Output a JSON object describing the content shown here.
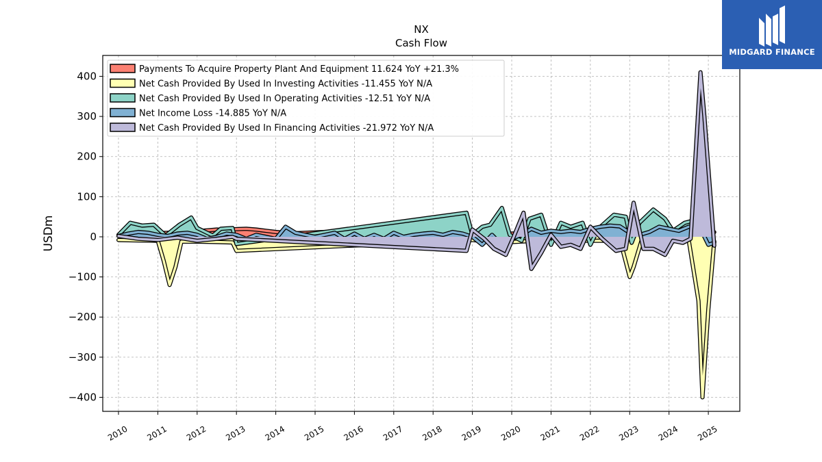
{
  "brand": {
    "name": "MIDGARD FINANCE",
    "logo_icon": "midgard-m-logo-icon",
    "color": "#2b5fb3"
  },
  "chart_data": {
    "type": "area",
    "title": "NX",
    "subtitle": "Cash Flow",
    "xlabel": "",
    "ylabel": "USDm",
    "xlim": [
      2009.6,
      2025.8
    ],
    "ylim": [
      -435,
      452
    ],
    "grid": true,
    "legend_position": "top-left",
    "x_ticks": [
      "2010",
      "2011",
      "2012",
      "2013",
      "2014",
      "2015",
      "2016",
      "2017",
      "2018",
      "2019",
      "2020",
      "2021",
      "2022",
      "2023",
      "2024",
      "2025"
    ],
    "y_ticks": [
      400,
      300,
      200,
      100,
      0,
      -100,
      -200,
      -300,
      -400
    ],
    "y_tick_labels": [
      "400",
      "300",
      "200",
      "100",
      "0",
      "−100",
      "−200",
      "−300",
      "−400"
    ],
    "series": [
      {
        "name": "Payments To Acquire Property Plant And Equipment",
        "legend": "Payments To Acquire Property Plant And Equipment  11.624 YoY +21.3%",
        "color": "#fb8072",
        "x": [
          2010.0,
          2010.25,
          2010.5,
          2010.75,
          2011.0,
          2011.25,
          2011.5,
          2011.75,
          2012.0,
          2012.25,
          2012.5,
          2012.75,
          2013.0,
          2013.25,
          2013.5,
          2013.75,
          2014.0,
          2014.25,
          2014.5,
          2014.75,
          2015.0,
          2015.25,
          2015.5,
          2015.75,
          2016.0,
          2016.25,
          2016.5,
          2016.75,
          2017.0,
          2017.25,
          2017.5,
          2017.75,
          2018.0,
          2018.25,
          2018.5,
          2018.75,
          2019.0,
          2019.25,
          2019.5,
          2019.75,
          2020.0,
          2020.25,
          2020.5,
          2020.75,
          2021.0,
          2021.25,
          2021.5,
          2021.75,
          2022.0,
          2022.25,
          2022.5,
          2022.75,
          2023.0,
          2023.25,
          2023.5,
          2023.75,
          2024.0,
          2024.25,
          2024.5,
          2024.75,
          2025.0,
          2025.15
        ],
        "values": [
          5,
          6,
          7,
          8,
          9,
          10,
          12,
          13,
          14,
          16,
          18,
          17,
          19,
          20,
          18,
          15,
          12,
          10,
          9,
          10,
          11,
          12,
          11,
          10,
          9,
          8,
          9,
          10,
          9,
          8,
          9,
          10,
          9,
          8,
          7,
          6,
          5,
          5,
          6,
          7,
          8,
          9,
          10,
          11,
          12,
          13,
          12,
          11,
          10,
          11,
          12,
          13,
          12,
          11,
          10,
          9,
          10,
          11,
          12,
          14,
          16,
          11.6
        ]
      },
      {
        "name": "Net Cash Provided By Used In Investing Activities",
        "legend": "Net Cash Provided By Used In Investing Activities  -11.455 YoY N/A",
        "color": "#ffffb3",
        "x": [
          2010.0,
          2010.5,
          2011.0,
          2011.15,
          2011.3,
          2011.45,
          2011.6,
          2012.0,
          2012.5,
          2012.9,
          2013.0,
          2018.8,
          2019.0,
          2019.4,
          2019.8,
          2020.2,
          2020.6,
          2021.0,
          2021.5,
          2022.0,
          2022.5,
          2022.8,
          2023.0,
          2023.1,
          2023.3,
          2023.6,
          2024.0,
          2024.5,
          2024.75,
          2024.85,
          2025.0,
          2025.15
        ],
        "values": [
          -8,
          -9,
          -10,
          -60,
          -120,
          -75,
          -12,
          -12,
          -13,
          -14,
          -35,
          -9,
          -8,
          -12,
          -14,
          -12,
          -10,
          -8,
          -9,
          -10,
          -10,
          -25,
          -100,
          -75,
          -10,
          -12,
          -12,
          -8,
          -160,
          -400,
          -180,
          -11.5
        ]
      },
      {
        "name": "Net Cash Provided By Used In Operating Activities",
        "legend": "Net Cash Provided By Used In Operating Activities  -12.51 YoY N/A",
        "color": "#8dd3c7",
        "x": [
          2010.0,
          2010.3,
          2010.6,
          2010.9,
          2011.2,
          2011.55,
          2011.85,
          2012.0,
          2012.4,
          2012.6,
          2012.9,
          2013.0,
          2018.85,
          2019.0,
          2019.25,
          2019.45,
          2019.75,
          2019.95,
          2020.25,
          2020.45,
          2020.75,
          2021.0,
          2021.25,
          2021.5,
          2021.8,
          2022.0,
          2022.2,
          2022.6,
          2022.9,
          2023.05,
          2023.25,
          2023.6,
          2023.9,
          2024.1,
          2024.4,
          2024.6,
          2024.85,
          2025.0,
          2025.15
        ],
        "values": [
          5,
          35,
          28,
          30,
          3,
          30,
          48,
          22,
          3,
          20,
          22,
          -18,
          60,
          5,
          25,
          30,
          72,
          5,
          -10,
          45,
          55,
          -20,
          35,
          25,
          35,
          -20,
          20,
          55,
          50,
          -15,
          35,
          68,
          45,
          15,
          35,
          40,
          35,
          0,
          -12.5
        ]
      },
      {
        "name": "Net Income Loss",
        "legend": "Net Income Loss  -14.885 YoY N/A",
        "color": "#80b1d3",
        "x": [
          2010.0,
          2010.25,
          2010.5,
          2010.75,
          2011.0,
          2011.25,
          2011.5,
          2011.75,
          2012.0,
          2012.25,
          2012.5,
          2012.75,
          2013.0,
          2013.25,
          2013.5,
          2013.75,
          2014.0,
          2014.25,
          2014.5,
          2014.75,
          2015.0,
          2015.25,
          2015.5,
          2015.75,
          2016.0,
          2016.25,
          2016.5,
          2016.75,
          2017.0,
          2017.25,
          2017.5,
          2017.75,
          2018.0,
          2018.25,
          2018.5,
          2018.75,
          2019.0,
          2019.25,
          2019.5,
          2019.75,
          2020.0,
          2020.25,
          2020.5,
          2020.75,
          2021.0,
          2021.25,
          2021.5,
          2021.75,
          2022.0,
          2022.25,
          2022.5,
          2022.75,
          2023.0,
          2023.25,
          2023.5,
          2023.75,
          2024.0,
          2024.25,
          2024.5,
          2024.75,
          2025.0,
          2025.15
        ],
        "values": [
          2,
          8,
          12,
          10,
          5,
          2,
          8,
          10,
          5,
          -5,
          0,
          8,
          5,
          -5,
          5,
          0,
          -5,
          25,
          10,
          5,
          0,
          5,
          10,
          -5,
          8,
          -5,
          5,
          -5,
          10,
          0,
          5,
          8,
          10,
          5,
          12,
          8,
          0,
          -20,
          5,
          -20,
          -5,
          5,
          20,
          10,
          15,
          12,
          15,
          12,
          20,
          25,
          28,
          26,
          10,
          5,
          12,
          25,
          20,
          15,
          25,
          30,
          -20,
          -14.9
        ]
      },
      {
        "name": "Net Cash Provided By Used In Financing Activities",
        "legend": "Net Cash Provided By Used In Financing Activities  -21.972 YoY N/A",
        "color": "#bebada",
        "x": [
          2010.0,
          2010.5,
          2011.0,
          2011.5,
          2012.0,
          2012.5,
          2012.9,
          2013.0,
          2018.85,
          2019.0,
          2019.3,
          2019.55,
          2019.85,
          2020.05,
          2020.3,
          2020.5,
          2020.75,
          2021.0,
          2021.25,
          2021.5,
          2021.75,
          2022.0,
          2022.3,
          2022.65,
          2022.9,
          2023.1,
          2023.35,
          2023.6,
          2023.9,
          2024.1,
          2024.35,
          2024.55,
          2024.8,
          2024.9,
          2025.15
        ],
        "values": [
          2,
          -5,
          -8,
          -2,
          -10,
          -5,
          0,
          -5,
          -35,
          18,
          -5,
          -30,
          -45,
          0,
          60,
          -80,
          -40,
          5,
          -25,
          -20,
          -30,
          25,
          -5,
          -35,
          -30,
          85,
          -30,
          -30,
          -45,
          -10,
          -15,
          -5,
          410,
          300,
          -22
        ]
      }
    ]
  }
}
